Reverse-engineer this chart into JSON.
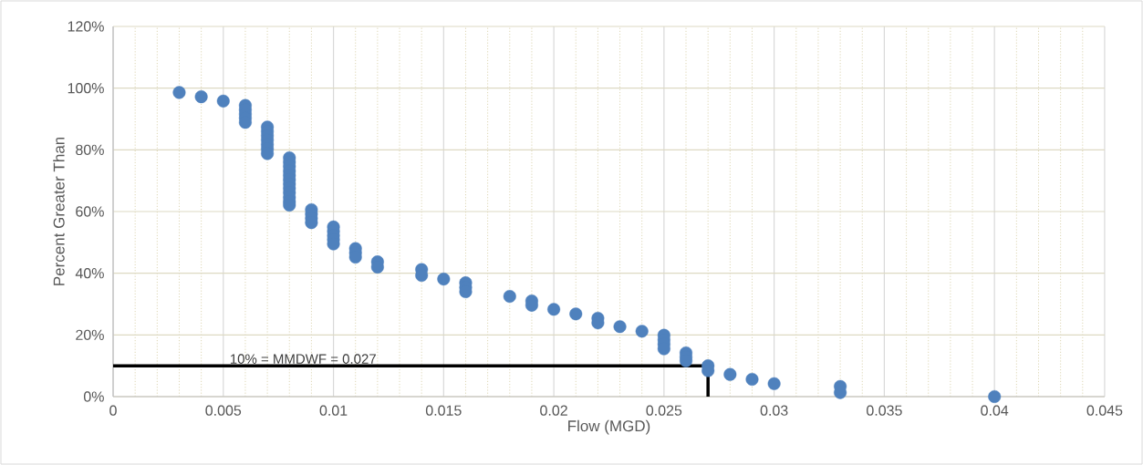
{
  "chart_data": {
    "type": "scatter",
    "xlabel": "Flow (MGD)",
    "ylabel": "Percent Greater Than",
    "xlim": [
      0,
      0.045
    ],
    "ylim": [
      0,
      120
    ],
    "xticks": [
      0,
      {
        "value": 0.001,
        "label": null
      },
      {
        "value": 0.002,
        "label": null
      },
      {
        "value": 0.003,
        "label": null
      },
      {
        "value": 0.004,
        "label": null
      },
      0.005,
      {
        "value": 0.006,
        "label": null
      },
      {
        "value": 0.007,
        "label": null
      },
      {
        "value": 0.008,
        "label": null
      },
      {
        "value": 0.009,
        "label": null
      },
      0.01,
      {
        "value": 0.011,
        "label": null
      },
      {
        "value": 0.012,
        "label": null
      },
      {
        "value": 0.013,
        "label": null
      },
      {
        "value": 0.014,
        "label": null
      },
      0.015,
      {
        "value": 0.016,
        "label": null
      },
      {
        "value": 0.017,
        "label": null
      },
      {
        "value": 0.018,
        "label": null
      },
      {
        "value": 0.019,
        "label": null
      },
      0.02,
      {
        "value": 0.021,
        "label": null
      },
      {
        "value": 0.022,
        "label": null
      },
      {
        "value": 0.023,
        "label": null
      },
      {
        "value": 0.024,
        "label": null
      },
      0.025,
      {
        "value": 0.026,
        "label": null
      },
      {
        "value": 0.027,
        "label": null
      },
      {
        "value": 0.028,
        "label": null
      },
      {
        "value": 0.029,
        "label": null
      },
      0.03,
      {
        "value": 0.031,
        "label": null
      },
      {
        "value": 0.032,
        "label": null
      },
      {
        "value": 0.033,
        "label": null
      },
      {
        "value": 0.034,
        "label": null
      },
      0.035,
      {
        "value": 0.036,
        "label": null
      },
      {
        "value": 0.037,
        "label": null
      },
      {
        "value": 0.038,
        "label": null
      },
      {
        "value": 0.039,
        "label": null
      },
      0.04,
      {
        "value": 0.041,
        "label": null
      },
      {
        "value": 0.042,
        "label": null
      },
      {
        "value": 0.043,
        "label": null
      },
      {
        "value": 0.044,
        "label": null
      },
      0.045
    ],
    "yticks": [
      {
        "value": 0,
        "label": "0%"
      },
      {
        "value": 20,
        "label": "20%"
      },
      {
        "value": 40,
        "label": "40%"
      },
      {
        "value": 60,
        "label": "60%"
      },
      {
        "value": 80,
        "label": "80%"
      },
      {
        "value": 100,
        "label": "100%"
      },
      {
        "value": 120,
        "label": "120%"
      }
    ],
    "grid": true,
    "annotations": [
      {
        "text": "10% = MMDWF = 0.027",
        "x": 0.0052,
        "y": 10
      }
    ],
    "series": [
      {
        "color": "#4f81bd",
        "marker": "circle",
        "x": [
          0.003,
          0.004,
          0.005,
          0.006,
          0.006,
          0.006,
          0.006,
          0.006,
          0.007,
          0.007,
          0.007,
          0.007,
          0.007,
          0.007,
          0.007,
          0.008,
          0.008,
          0.008,
          0.008,
          0.008,
          0.008,
          0.008,
          0.008,
          0.008,
          0.008,
          0.008,
          0.008,
          0.009,
          0.009,
          0.009,
          0.009,
          0.01,
          0.01,
          0.01,
          0.01,
          0.01,
          0.011,
          0.011,
          0.011,
          0.012,
          0.012,
          0.014,
          0.014,
          0.015,
          0.016,
          0.016,
          0.016,
          0.018,
          0.019,
          0.019,
          0.02,
          0.021,
          0.022,
          0.022,
          0.023,
          0.024,
          0.025,
          0.025,
          0.025,
          0.025,
          0.026,
          0.026,
          0.026,
          0.027,
          0.027,
          0.028,
          0.029,
          0.03,
          0.033,
          0.033,
          0.04
        ],
        "values": [
          98.6,
          97.2,
          95.8,
          94.4,
          93.0,
          91.6,
          90.3,
          88.9,
          87.4,
          86.0,
          84.6,
          83.2,
          81.7,
          80.3,
          78.8,
          77.4,
          76.0,
          74.6,
          73.1,
          71.7,
          70.3,
          68.9,
          67.5,
          66.1,
          64.6,
          63.2,
          62.1,
          60.6,
          59.2,
          57.8,
          56.4,
          55.0,
          53.6,
          52.2,
          50.9,
          49.5,
          48.0,
          46.6,
          45.2,
          43.7,
          42.0,
          41.2,
          39.3,
          38.1,
          36.9,
          35.4,
          34.0,
          32.5,
          31.0,
          29.6,
          28.3,
          26.8,
          25.4,
          23.9,
          22.7,
          21.2,
          19.9,
          18.4,
          17.0,
          15.5,
          14.2,
          12.8,
          11.6,
          10.0,
          8.4,
          7.2,
          5.6,
          4.2,
          3.3,
          1.3,
          0.0
        ]
      },
      {
        "type": "line",
        "color": "#000000",
        "line_style": "solid",
        "x": [
          0,
          0.027,
          0.027
        ],
        "values": [
          10,
          10,
          0
        ]
      }
    ]
  }
}
